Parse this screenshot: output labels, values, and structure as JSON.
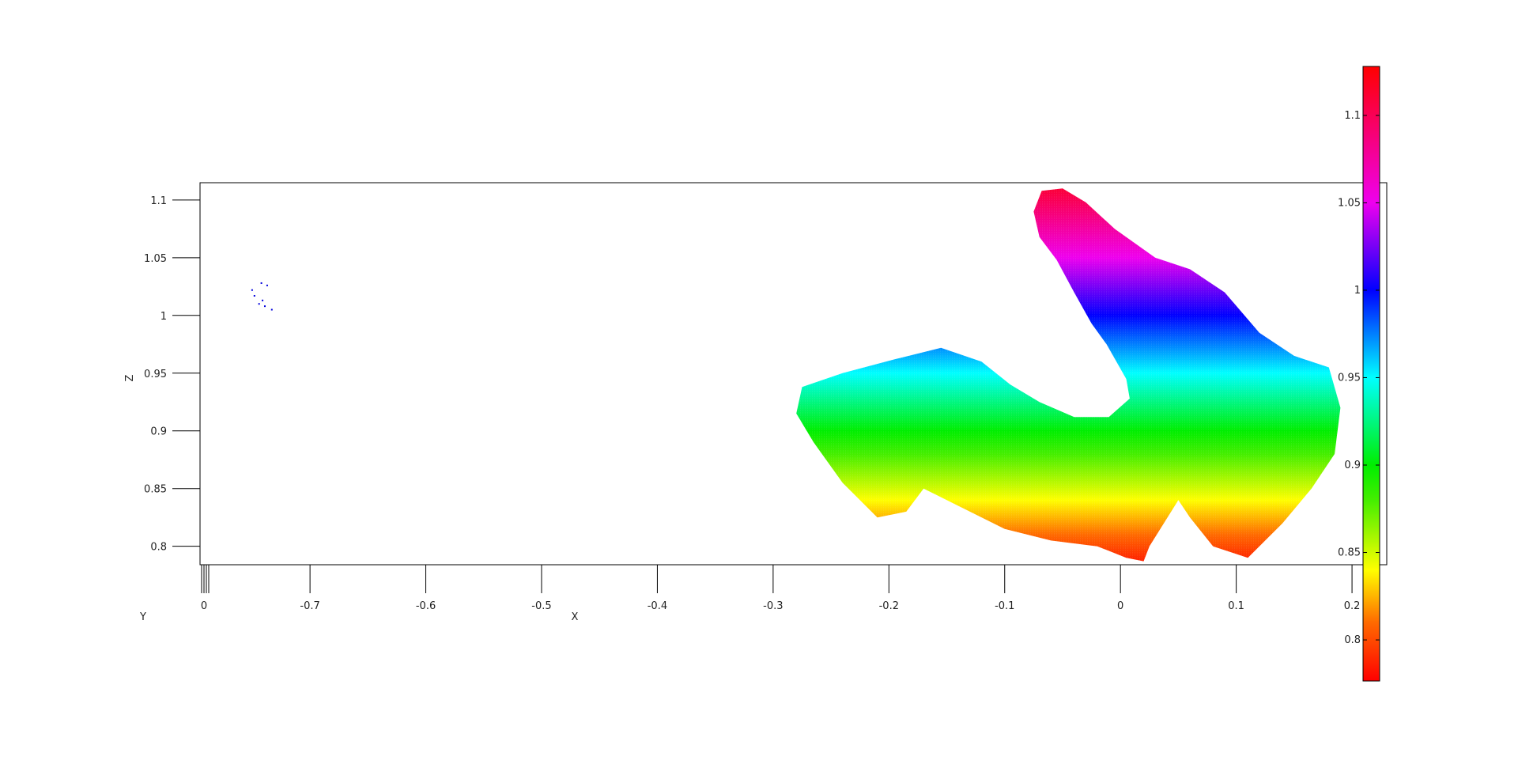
{
  "chart_data": {
    "type": "scatter",
    "title": "",
    "xlabel": "X",
    "ylabel": "Z",
    "y_axis_label": "Y",
    "xlim": [
      -0.795,
      0.23
    ],
    "zlim": [
      0.784,
      1.115
    ],
    "x_ticks": [
      -0.7,
      -0.6,
      -0.5,
      -0.4,
      -0.3,
      -0.2,
      -0.1,
      0,
      0.1,
      0.2
    ],
    "x_tick_labels": [
      "-0.7",
      "-0.6",
      "-0.5",
      "-0.4",
      "-0.3",
      "-0.2",
      "-0.1",
      "0",
      "0.1",
      "0.2"
    ],
    "z_ticks": [
      1.1,
      1.05,
      1.0,
      0.95,
      0.9,
      0.85,
      0.8
    ],
    "z_tick_labels": [
      "1.1",
      "1.05",
      "1",
      "0.95",
      "0.9",
      "0.85",
      "0.8"
    ],
    "y_tick_labels": [
      "0"
    ],
    "grid": false,
    "colormap": "hsv",
    "color_by": "Z",
    "colorbar": {
      "range": [
        0.7765,
        1.128
      ],
      "ticks": [
        1.1,
        1.05,
        1.0,
        0.95,
        0.9,
        0.85,
        0.8
      ],
      "tick_labels": [
        "1.1",
        "1.05",
        "1",
        "0.95",
        "0.9",
        "0.85",
        "0.8"
      ],
      "stops": [
        {
          "value": 0.7765,
          "color": "#ff0000"
        },
        {
          "value": 0.81,
          "color": "#ff6a00"
        },
        {
          "value": 0.84,
          "color": "#ffff00"
        },
        {
          "value": 0.88,
          "color": "#44ee00"
        },
        {
          "value": 0.9,
          "color": "#00ee00"
        },
        {
          "value": 0.95,
          "color": "#00ffff"
        },
        {
          "value": 1.0,
          "color": "#0000ff"
        },
        {
          "value": 1.05,
          "color": "#ee00ee"
        },
        {
          "value": 1.128,
          "color": "#ff0000"
        }
      ]
    },
    "point_cloud_main": {
      "outline": [
        [
          -0.275,
          0.938
        ],
        [
          -0.24,
          0.95
        ],
        [
          -0.195,
          0.962
        ],
        [
          -0.155,
          0.972
        ],
        [
          -0.12,
          0.96
        ],
        [
          -0.095,
          0.94
        ],
        [
          -0.07,
          0.925
        ],
        [
          -0.04,
          0.912
        ],
        [
          -0.01,
          0.912
        ],
        [
          0.008,
          0.928
        ],
        [
          0.005,
          0.945
        ],
        [
          -0.012,
          0.975
        ],
        [
          -0.025,
          0.993
        ],
        [
          -0.04,
          1.02
        ],
        [
          -0.055,
          1.048
        ],
        [
          -0.07,
          1.068
        ],
        [
          -0.075,
          1.09
        ],
        [
          -0.068,
          1.108
        ],
        [
          -0.05,
          1.11
        ],
        [
          -0.03,
          1.098
        ],
        [
          -0.005,
          1.075
        ],
        [
          0.03,
          1.05
        ],
        [
          0.06,
          1.04
        ],
        [
          0.09,
          1.02
        ],
        [
          0.12,
          0.985
        ],
        [
          0.15,
          0.965
        ],
        [
          0.18,
          0.955
        ],
        [
          0.19,
          0.92
        ],
        [
          0.185,
          0.88
        ],
        [
          0.165,
          0.85
        ],
        [
          0.14,
          0.82
        ],
        [
          0.11,
          0.79
        ],
        [
          0.08,
          0.8
        ],
        [
          0.06,
          0.825
        ],
        [
          0.05,
          0.84
        ],
        [
          0.025,
          0.8
        ],
        [
          0.02,
          0.787
        ],
        [
          0.005,
          0.79
        ],
        [
          -0.02,
          0.8
        ],
        [
          -0.06,
          0.805
        ],
        [
          -0.1,
          0.815
        ],
        [
          -0.13,
          0.83
        ],
        [
          -0.16,
          0.845
        ],
        [
          -0.17,
          0.85
        ],
        [
          -0.185,
          0.83
        ],
        [
          -0.21,
          0.825
        ],
        [
          -0.24,
          0.855
        ],
        [
          -0.265,
          0.89
        ],
        [
          -0.28,
          0.915
        ]
      ]
    },
    "point_cloud_outlier": {
      "points": [
        [
          -0.75,
          1.022
        ],
        [
          -0.748,
          1.017
        ],
        [
          -0.744,
          1.01
        ],
        [
          -0.742,
          1.028
        ],
        [
          -0.741,
          1.013
        ],
        [
          -0.739,
          1.008
        ],
        [
          -0.737,
          1.026
        ],
        [
          -0.733,
          1.005
        ]
      ],
      "z_level": 1.0
    }
  }
}
